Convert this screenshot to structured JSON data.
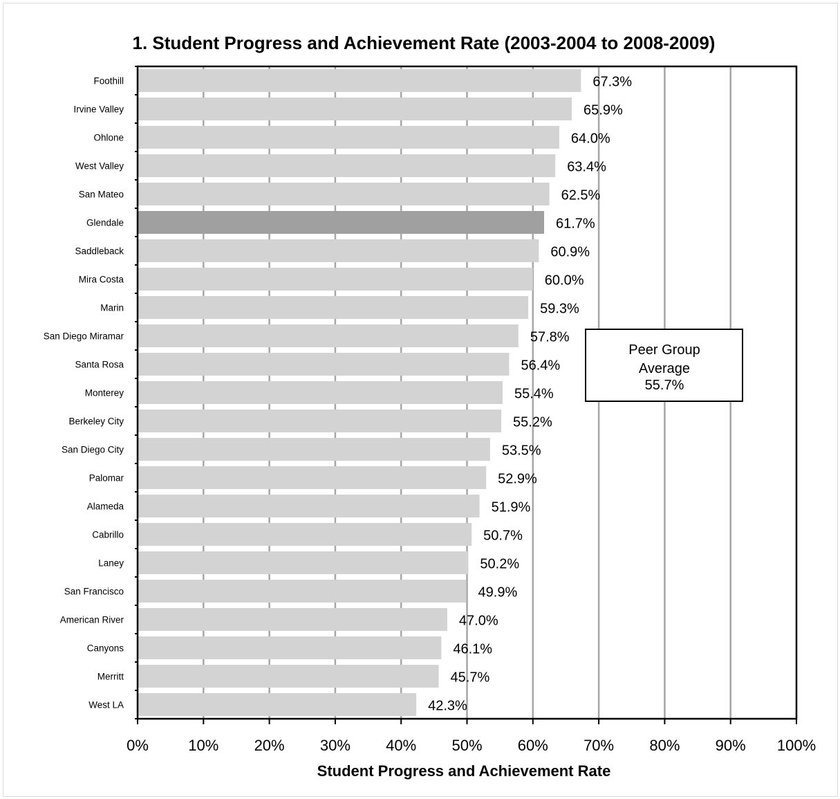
{
  "chart_data": {
    "type": "bar",
    "orientation": "horizontal",
    "title": "1. Student Progress and Achievement Rate (2003-2004 to 2008-2009)",
    "xlabel": "Student Progress and Achievement Rate",
    "ylabel": "",
    "xlim": [
      0,
      100
    ],
    "x_tick_labels": [
      "0%",
      "10%",
      "20%",
      "30%",
      "40%",
      "50%",
      "60%",
      "70%",
      "80%",
      "90%",
      "100%"
    ],
    "grid": true,
    "categories": [
      "Foothill",
      "Irvine Valley",
      "Ohlone",
      "West Valley",
      "San Mateo",
      "Glendale",
      "Saddleback",
      "Mira Costa",
      "Marin",
      "San Diego Miramar",
      "Santa Rosa",
      "Monterey",
      "Berkeley City",
      "San Diego City",
      "Palomar",
      "Alameda",
      "Cabrillo",
      "Laney",
      "San Francisco",
      "American River",
      "Canyons",
      "Merritt",
      "West LA"
    ],
    "values": [
      67.3,
      65.9,
      64.0,
      63.4,
      62.5,
      61.7,
      60.9,
      60.0,
      59.3,
      57.8,
      56.4,
      55.4,
      55.2,
      53.5,
      52.9,
      51.9,
      50.7,
      50.2,
      49.9,
      47.0,
      46.1,
      45.7,
      42.3
    ],
    "value_labels": [
      "67.3%",
      "65.9%",
      "64.0%",
      "63.4%",
      "62.5%",
      "61.7%",
      "60.9%",
      "60.0%",
      "59.3%",
      "57.8%",
      "56.4%",
      "55.4%",
      "55.2%",
      "53.5%",
      "52.9%",
      "51.9%",
      "50.7%",
      "50.2%",
      "49.9%",
      "47.0%",
      "46.1%",
      "45.7%",
      "42.3%"
    ],
    "highlight_category": "Glendale",
    "colors": {
      "bar": "#d3d3d3",
      "highlight_bar": "#a0a0a0",
      "grid": "#a6a6a6",
      "axis": "#000000"
    },
    "annotation": {
      "lines": [
        "Peer Group",
        "Average",
        "55.7%"
      ],
      "value": 55.7,
      "placement": "right of bars, middle"
    }
  }
}
